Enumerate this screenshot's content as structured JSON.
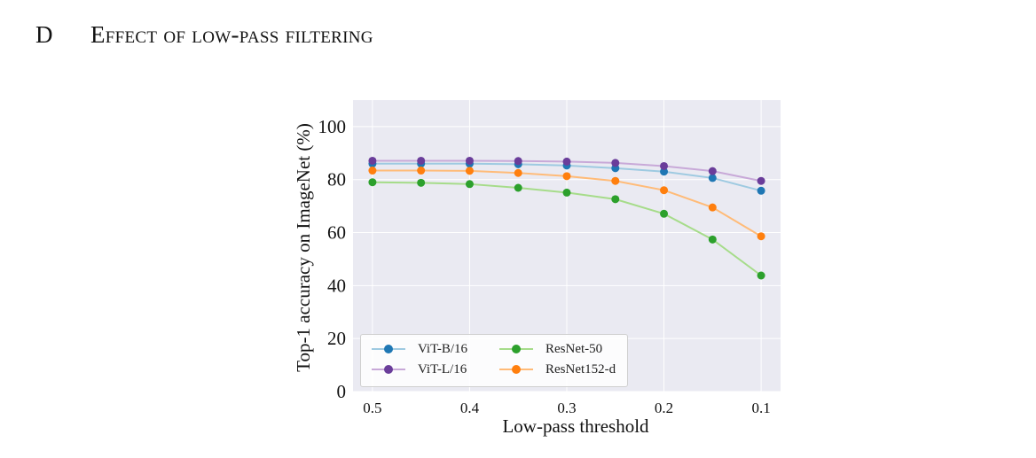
{
  "section": {
    "number": "D",
    "title": "Effect of low-pass filtering"
  },
  "chart_data": {
    "type": "line",
    "xlabel": "Low-pass threshold",
    "ylabel": "Top-1 accuracy on ImageNet (%)",
    "x": [
      0.5,
      0.45,
      0.4,
      0.35,
      0.3,
      0.25,
      0.2,
      0.15,
      0.1
    ],
    "x_ticks": [
      "0.5",
      "0.4",
      "0.3",
      "0.2",
      "0.1"
    ],
    "x_reversed": true,
    "ylim": [
      0,
      110
    ],
    "y_ticks": [
      "0",
      "20",
      "40",
      "60",
      "80",
      "100"
    ],
    "grid": true,
    "legend_position": "lower-left",
    "series": [
      {
        "name": "ViT-B/16",
        "color": "#1f77b4",
        "line_color": "#9ecae1",
        "values": [
          86.0,
          86.0,
          86.0,
          85.8,
          85.3,
          84.3,
          83.0,
          80.6,
          75.8
        ]
      },
      {
        "name": "ViT-L/16",
        "color": "#6a3d9a",
        "line_color": "#c8a9d8",
        "values": [
          87.1,
          87.1,
          87.1,
          87.0,
          86.8,
          86.3,
          85.1,
          83.2,
          79.5
        ]
      },
      {
        "name": "ResNet-50",
        "color": "#2ca02c",
        "line_color": "#a6dc8a",
        "values": [
          79.0,
          78.8,
          78.3,
          76.9,
          75.1,
          72.6,
          67.1,
          57.4,
          43.8
        ]
      },
      {
        "name": "ResNet152-d",
        "color": "#ff7f0e",
        "line_color": "#ffbb78",
        "values": [
          83.4,
          83.4,
          83.3,
          82.5,
          81.3,
          79.5,
          76.0,
          69.5,
          58.6
        ]
      }
    ]
  }
}
